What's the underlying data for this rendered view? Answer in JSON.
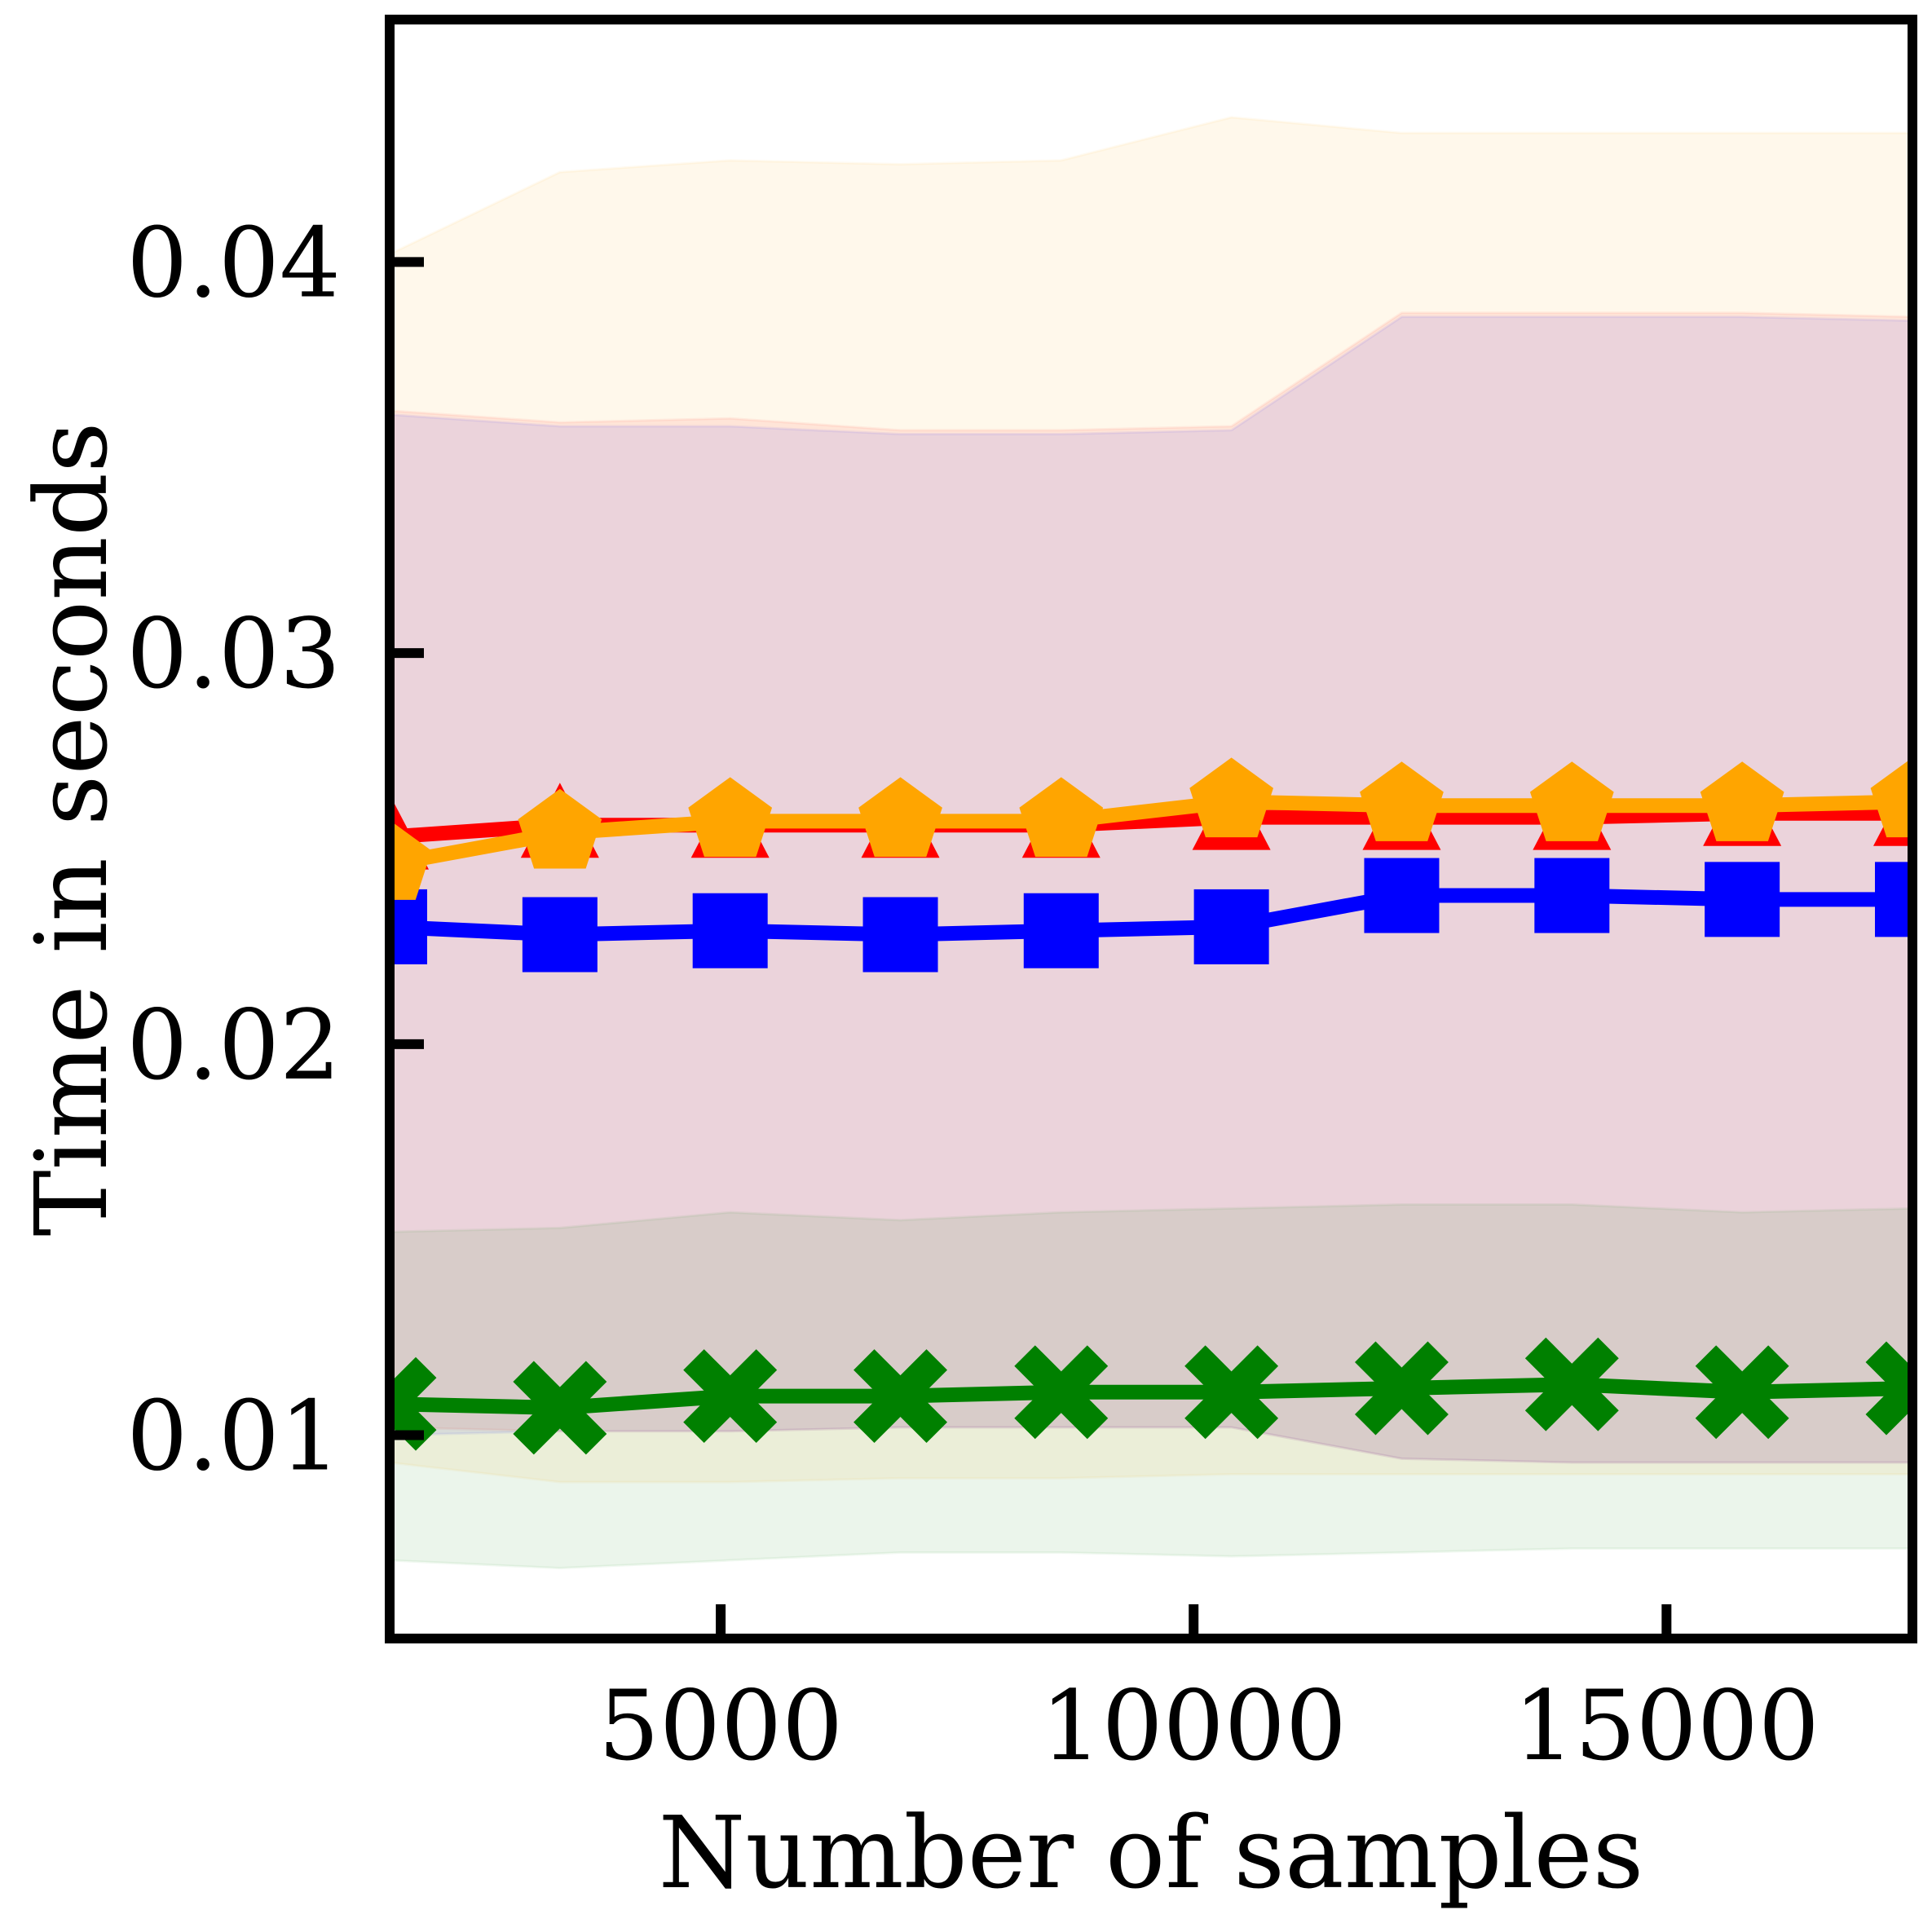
{
  "chart_data": {
    "type": "line",
    "title": "",
    "xlabel": "Number of samples",
    "ylabel": "Time in seconds",
    "xlim": [
      1500,
      17600
    ],
    "ylim": [
      0.0048,
      0.0462
    ],
    "xticks": [
      5000,
      10000,
      15000
    ],
    "xtick_labels": [
      "5000",
      "10000",
      "15000"
    ],
    "yticks": [
      0.01,
      0.02,
      0.03,
      0.04
    ],
    "ytick_labels": [
      "0.01",
      "0.02",
      "0.03",
      "0.04"
    ],
    "grid": false,
    "x": [
      1500,
      3300,
      5100,
      6900,
      8600,
      10400,
      12200,
      14000,
      15800,
      17600
    ],
    "series": [
      {
        "color": "#ff0000",
        "marker": "triangle",
        "values": [
          0.0253,
          0.0256,
          0.0256,
          0.0256,
          0.0256,
          0.0258,
          0.0258,
          0.0258,
          0.0259,
          0.0259
        ],
        "band_lower": [
          0.0102,
          0.0101,
          0.0101,
          0.0102,
          0.0102,
          0.0102,
          0.0094,
          0.0093,
          0.0093,
          0.0093
        ],
        "band_upper": [
          0.0362,
          0.0359,
          0.036,
          0.0357,
          0.0357,
          0.0358,
          0.0387,
          0.0387,
          0.0387,
          0.0386
        ]
      },
      {
        "color": "#ffa500",
        "marker": "pentagon",
        "values": [
          0.0246,
          0.0254,
          0.0257,
          0.0257,
          0.0257,
          0.0262,
          0.0261,
          0.0261,
          0.0261,
          0.0262
        ],
        "band_lower": [
          0.0093,
          0.0088,
          0.0088,
          0.0089,
          0.0089,
          0.009,
          0.009,
          0.009,
          0.009,
          0.009
        ],
        "band_upper": [
          0.0402,
          0.0423,
          0.0426,
          0.0425,
          0.0426,
          0.0437,
          0.0433,
          0.0433,
          0.0433,
          0.0433
        ]
      },
      {
        "color": "#0000ff",
        "marker": "square",
        "values": [
          0.023,
          0.0228,
          0.0229,
          0.0228,
          0.0229,
          0.023,
          0.0238,
          0.0238,
          0.0237,
          0.0237
        ],
        "band_lower": [
          0.01,
          0.0101,
          0.0101,
          0.0102,
          0.0102,
          0.0102,
          0.0094,
          0.0093,
          0.0093,
          0.0093
        ],
        "band_upper": [
          0.0361,
          0.0358,
          0.0358,
          0.0356,
          0.0356,
          0.0357,
          0.0386,
          0.0386,
          0.0386,
          0.0385
        ]
      },
      {
        "color": "#008000",
        "marker": "x",
        "values": [
          0.0108,
          0.0107,
          0.011,
          0.011,
          0.0111,
          0.0111,
          0.0112,
          0.0113,
          0.0111,
          0.0112
        ],
        "band_lower": [
          0.0068,
          0.0066,
          0.0068,
          0.007,
          0.007,
          0.0069,
          0.007,
          0.0071,
          0.0071,
          0.0071
        ],
        "band_upper": [
          0.0152,
          0.0153,
          0.0157,
          0.0155,
          0.0157,
          0.0158,
          0.0159,
          0.0159,
          0.0157,
          0.0158
        ]
      }
    ]
  }
}
